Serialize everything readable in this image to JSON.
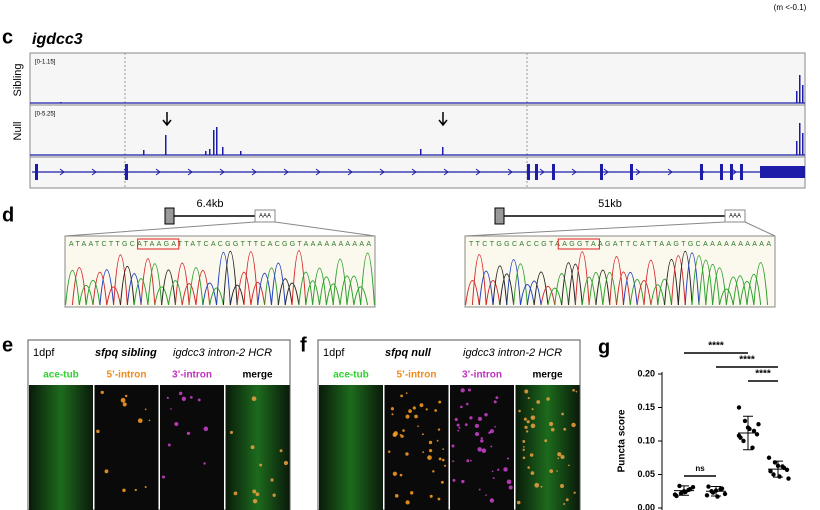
{
  "header": {
    "note": "(m <-0.1)"
  },
  "panel_c": {
    "label": "c",
    "gene": "igdcc3",
    "tracks": [
      {
        "name": "Sibling",
        "range": "[0-1.15]"
      },
      {
        "name": "Null",
        "range": "[0-5.25]"
      }
    ]
  },
  "panel_d": {
    "label": "d",
    "constructs": [
      {
        "size": "6.4kb",
        "tail": "AAA",
        "sequence": "ATAATCTTGCATAAGATTATCACGGTTTCACGGTAAAAAAAAAA"
      },
      {
        "size": "51kb",
        "tail": "AAA",
        "sequence": "TTCTGGCACCGTAAGGTAAGATTCATTAAGTGCAAAAAAAAAA"
      }
    ]
  },
  "panel_e": {
    "label": "e",
    "age": "1dpf",
    "genotype": "sfpq sibling",
    "probe": "igdcc3 intron-2 HCR",
    "channels": [
      "ace-tub",
      "5’-intron",
      "3’-intron",
      "merge"
    ]
  },
  "panel_f": {
    "label": "f",
    "age": "1dpf",
    "genotype": "sfpq null",
    "probe": "igdcc3 intron-2 HCR",
    "channels": [
      "ace-tub",
      "5’-intron",
      "3’-intron",
      "merge"
    ]
  },
  "panel_g": {
    "label": "g",
    "type": "scatter",
    "ylabel": "Puncta score",
    "ylim": [
      0,
      0.2
    ],
    "yticks": [
      {
        "value": 0,
        "label": "0.00"
      },
      {
        "value": 0.05,
        "label": "0.05"
      },
      {
        "value": 0.1,
        "label": "0.10"
      },
      {
        "value": 0.15,
        "label": "0.15"
      },
      {
        "value": 0.2,
        "label": "0.20"
      }
    ],
    "groups": [
      {
        "mean": 0.026,
        "sd": 0.007,
        "values": [
          0.02,
          0.022,
          0.025,
          0.028,
          0.031,
          0.018,
          0.033,
          0.024,
          0.027
        ]
      },
      {
        "mean": 0.025,
        "sd": 0.007,
        "values": [
          0.019,
          0.023,
          0.026,
          0.029,
          0.021,
          0.032,
          0.025,
          0.017,
          0.028
        ]
      },
      {
        "mean": 0.112,
        "sd": 0.025,
        "values": [
          0.15,
          0.13,
          0.12,
          0.115,
          0.11,
          0.105,
          0.1,
          0.118,
          0.09,
          0.125,
          0.108
        ]
      },
      {
        "mean": 0.058,
        "sd": 0.012,
        "values": [
          0.075,
          0.068,
          0.063,
          0.06,
          0.057,
          0.055,
          0.05,
          0.047,
          0.062,
          0.044
        ]
      }
    ],
    "significance": [
      "****",
      "****",
      "****",
      "ns"
    ]
  }
}
